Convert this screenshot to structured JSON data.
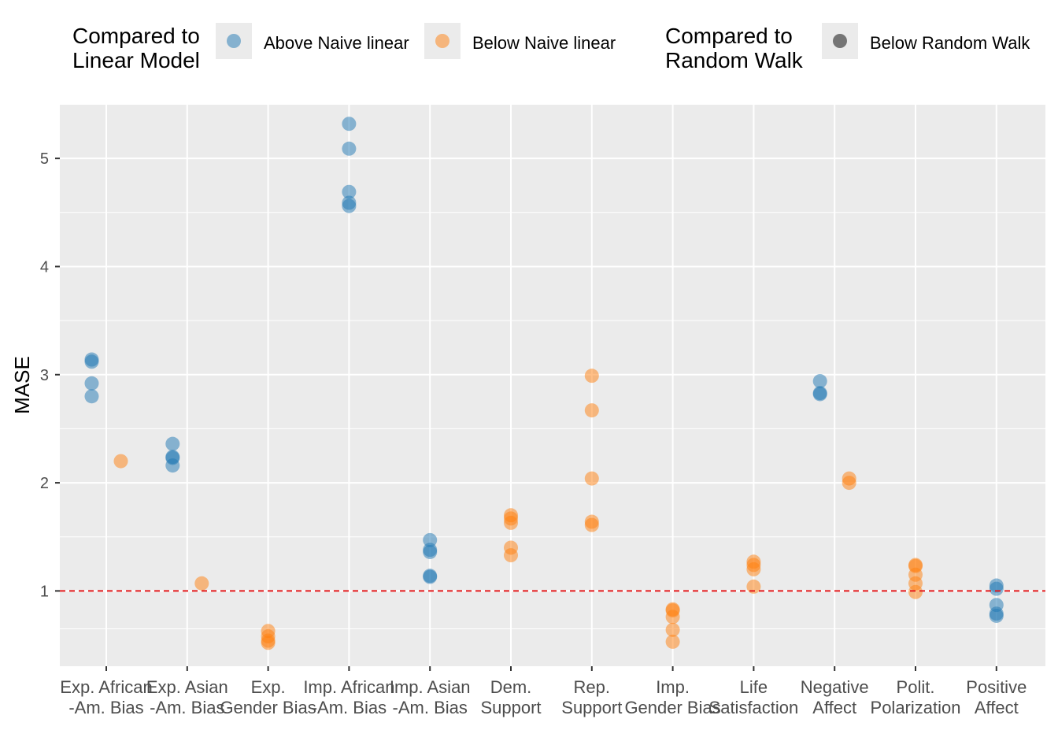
{
  "chart_data": {
    "type": "scatter",
    "ylabel": "MASE",
    "xlabel": "",
    "ylim": [
      0.3,
      5.5
    ],
    "yticks": [
      1,
      2,
      3,
      4,
      5
    ],
    "reference_line": {
      "y": 1,
      "color": "#e41a1c",
      "style": "dashed"
    },
    "categories": [
      {
        "line1": "Exp. African",
        "line2": "-Am. Bias"
      },
      {
        "line1": "Exp. Asian",
        "line2": "-Am. Bias"
      },
      {
        "line1": "Exp.",
        "line2": "Gender Bias"
      },
      {
        "line1": "Imp. African",
        "line2": "-Am. Bias"
      },
      {
        "line1": "Imp. Asian",
        "line2": "-Am. Bias"
      },
      {
        "line1": "Dem.",
        "line2": "Support"
      },
      {
        "line1": "Rep.",
        "line2": "Support"
      },
      {
        "line1": "Imp.",
        "line2": "Gender Bias"
      },
      {
        "line1": "Life",
        "line2": "Satisfaction"
      },
      {
        "line1": "Negative",
        "line2": "Affect"
      },
      {
        "line1": "Polit.",
        "line2": "Polarization"
      },
      {
        "line1": "Positive",
        "line2": "Affect"
      }
    ],
    "series": [
      {
        "key": "above",
        "color": "#1f77b4",
        "points": [
          {
            "cat": 0,
            "offset": -0.18,
            "values": [
              3.14,
              3.12,
              2.92,
              2.8
            ]
          },
          {
            "cat": 1,
            "offset": -0.18,
            "values": [
              2.36,
              2.24,
              2.23,
              2.16
            ]
          },
          {
            "cat": 3,
            "offset": 0,
            "values": [
              5.32,
              5.09,
              4.69,
              4.59,
              4.56
            ]
          },
          {
            "cat": 4,
            "offset": 0,
            "values": [
              1.47,
              1.38,
              1.36,
              1.14,
              1.13
            ]
          },
          {
            "cat": 9,
            "offset": -0.18,
            "values": [
              2.94,
              2.83,
              2.82
            ]
          },
          {
            "cat": 11,
            "offset": 0,
            "values": [
              1.05,
              1.02,
              0.87,
              0.79,
              0.77
            ]
          }
        ]
      },
      {
        "key": "below",
        "color": "#ff7f0e",
        "points": [
          {
            "cat": 0,
            "offset": 0.18,
            "values": [
              2.2
            ]
          },
          {
            "cat": 1,
            "offset": 0.18,
            "values": [
              1.07
            ]
          },
          {
            "cat": 2,
            "offset": 0,
            "values": [
              0.63,
              0.58,
              0.54,
              0.52
            ]
          },
          {
            "cat": 5,
            "offset": 0,
            "values": [
              1.7,
              1.67,
              1.63,
              1.4,
              1.33
            ]
          },
          {
            "cat": 6,
            "offset": 0,
            "values": [
              2.99,
              2.67,
              2.04,
              1.64,
              1.61
            ]
          },
          {
            "cat": 7,
            "offset": 0,
            "values": [
              0.83,
              0.82,
              0.76,
              0.64,
              0.53
            ]
          },
          {
            "cat": 8,
            "offset": 0,
            "values": [
              1.27,
              1.24,
              1.2,
              1.04
            ]
          },
          {
            "cat": 9,
            "offset": 0.18,
            "values": [
              2.04,
              2.0
            ]
          },
          {
            "cat": 10,
            "offset": 0,
            "values": [
              1.24,
              1.23,
              1.15,
              1.07,
              0.99
            ]
          }
        ]
      }
    ],
    "legend": {
      "placement": "top",
      "group1": {
        "title_line1": "Compared to",
        "title_line2": "Linear Model",
        "items": [
          {
            "label": "Above Naive linear",
            "color": "#1f77b4"
          },
          {
            "label": "Below Naive linear",
            "color": "#ff7f0e"
          }
        ]
      },
      "group2": {
        "title_line1": "Compared to",
        "title_line2": "Random Walk",
        "items": [
          {
            "label": "Below Random Walk",
            "color": "#000000"
          }
        ]
      }
    },
    "grid": true
  }
}
